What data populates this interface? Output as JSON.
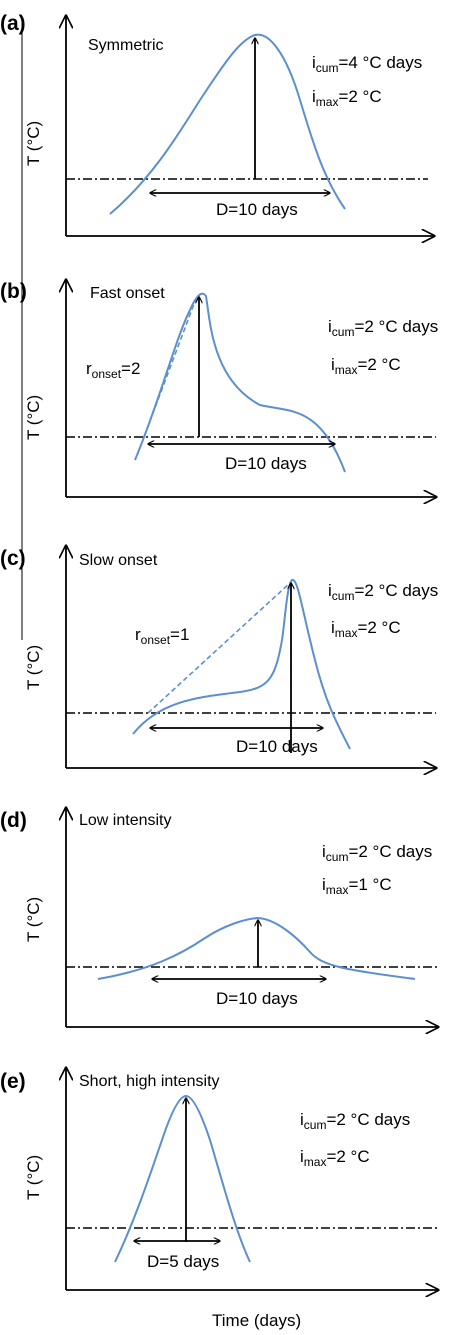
{
  "x_axis_label": "Time (days)",
  "y_axis_label": "T (°C)",
  "panels": [
    {
      "letter": "(a)",
      "title": "Symmetric",
      "icum": {
        "main": "i",
        "sub": "cum",
        "value": "=4 °C days"
      },
      "imax": {
        "main": "i",
        "sub": "max",
        "value": "=2 °C"
      },
      "duration": "D=10 days"
    },
    {
      "letter": "(b)",
      "title": "Fast onset",
      "icum": {
        "main": "i",
        "sub": "cum",
        "value": "=2 °C days"
      },
      "imax": {
        "main": "i",
        "sub": "max",
        "value": "=2 °C"
      },
      "onset": {
        "main": "r",
        "sub": "onset",
        "value": "=2"
      },
      "duration": "D=10 days"
    },
    {
      "letter": "(c)",
      "title": "Slow onset",
      "icum": {
        "main": "i",
        "sub": "cum",
        "value": "=2 °C days"
      },
      "imax": {
        "main": "i",
        "sub": "max",
        "value": "=2 °C"
      },
      "onset": {
        "main": "r",
        "sub": "onset",
        "value": "=1"
      },
      "duration": "D=10 days"
    },
    {
      "letter": "(d)",
      "title": "Low intensity",
      "icum": {
        "main": "i",
        "sub": "cum",
        "value": "=2 °C days"
      },
      "imax": {
        "main": "i",
        "sub": "max",
        "value": "=1  °C"
      },
      "duration": "D=10 days"
    },
    {
      "letter": "(e)",
      "title": "Short, high intensity",
      "icum": {
        "main": "i",
        "sub": "cum",
        "value": "=2  °C days"
      },
      "imax": {
        "main": "i",
        "sub": "max",
        "value": "=2 °C"
      },
      "duration": "D=5 days"
    }
  ]
}
